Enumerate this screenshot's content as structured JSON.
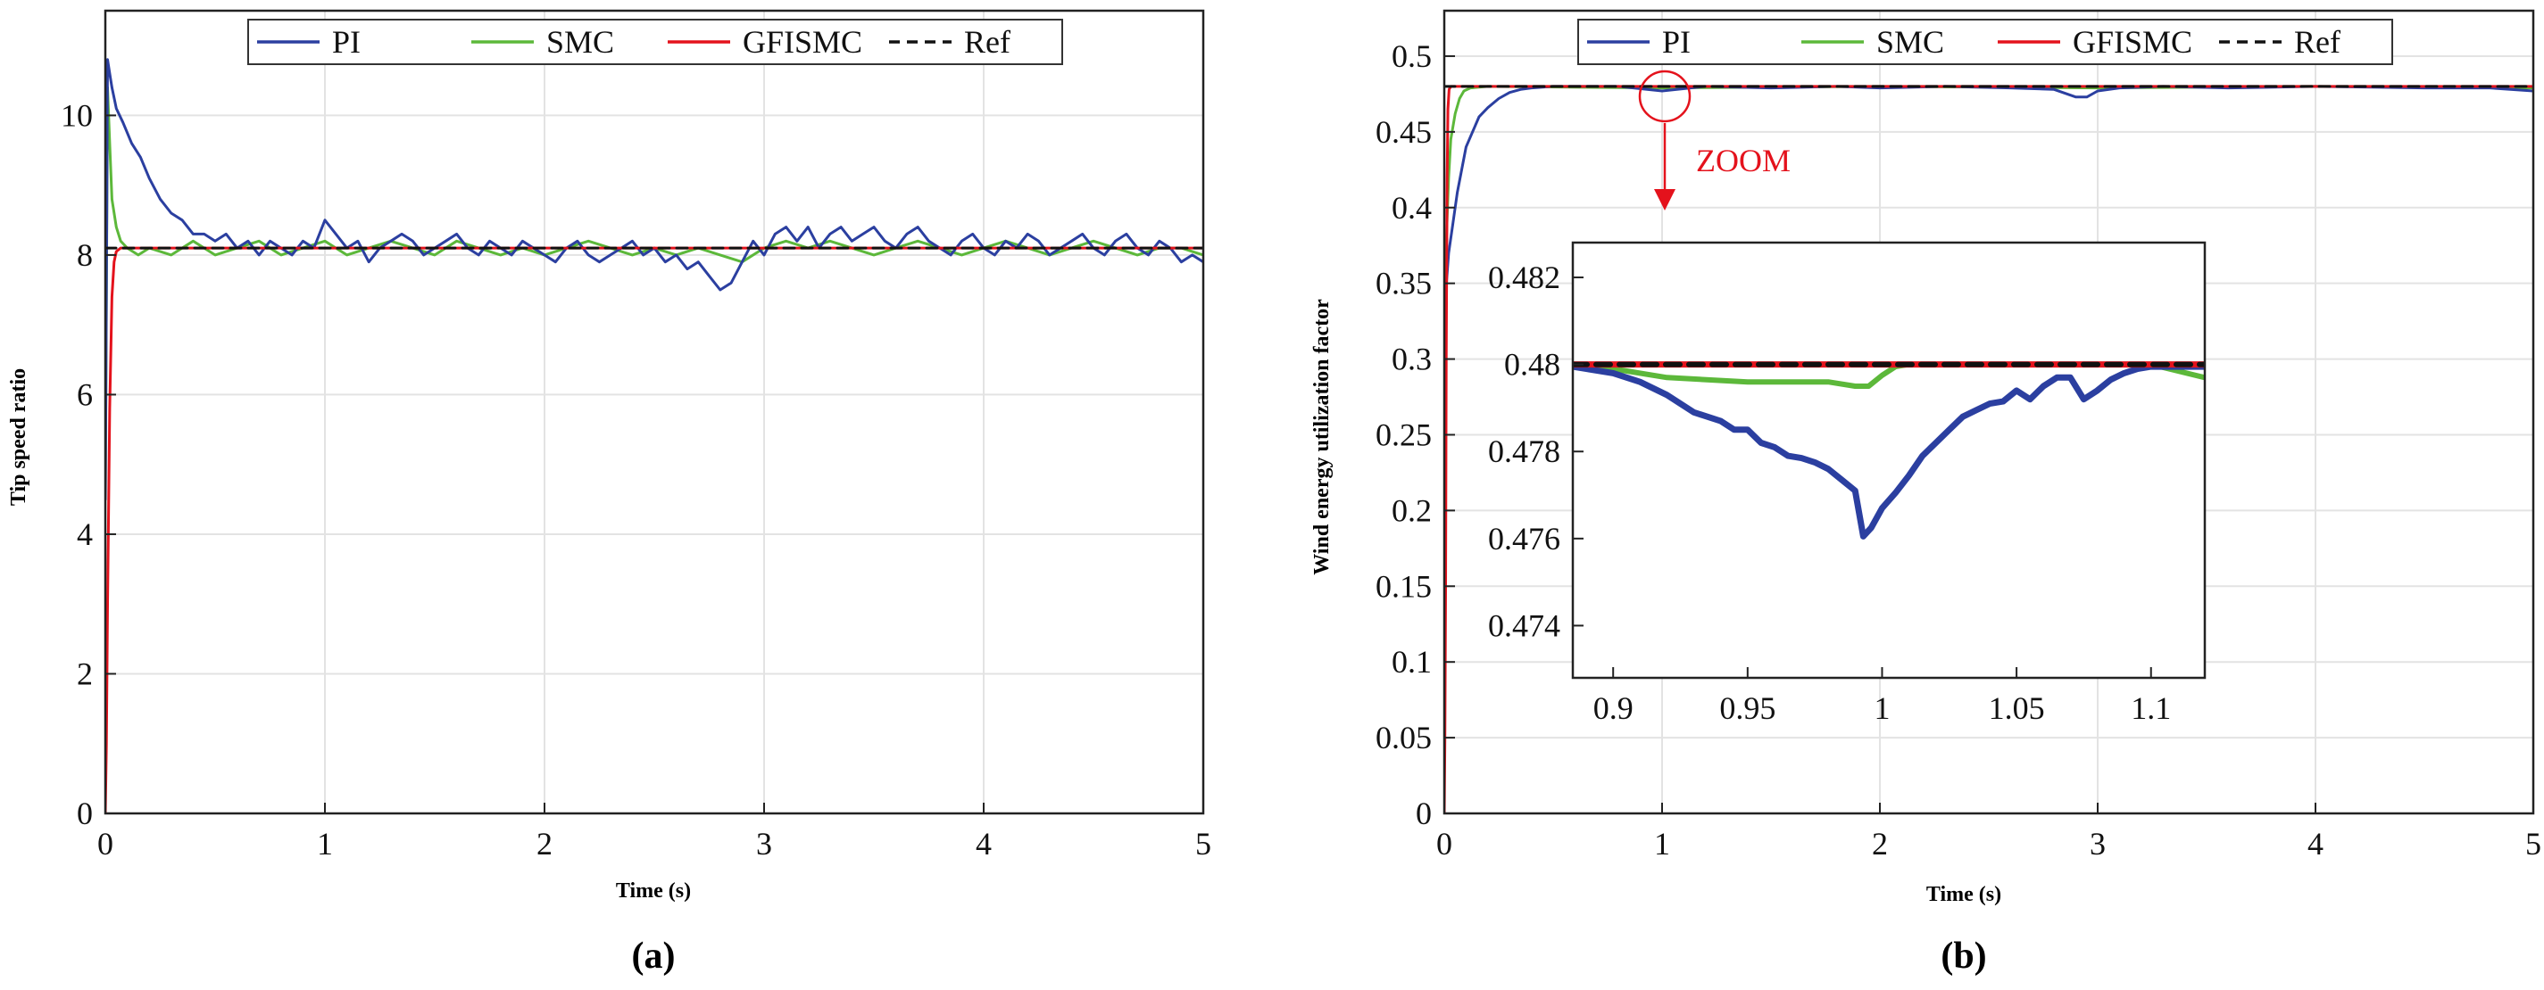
{
  "colors": {
    "PI": "#2b3fa0",
    "SMC": "#5cb83a",
    "GFISMC": "#e4121c",
    "Ref": "#111111",
    "annotation": "#e4121c"
  },
  "chart_data": [
    {
      "type": "line",
      "caption": "(a)",
      "xlabel": "Time (s)",
      "ylabel": "Tip speed ratio",
      "xlim": [
        0,
        5
      ],
      "ylim": [
        0,
        11.5
      ],
      "xticks": [
        0,
        1,
        2,
        3,
        4,
        5
      ],
      "xtick_labels": [
        "0",
        "1",
        "2",
        "3",
        "4",
        "5"
      ],
      "yticks": [
        0,
        2,
        4,
        6,
        8,
        10
      ],
      "ytick_labels": [
        "0",
        "2",
        "4",
        "6",
        "8",
        "10"
      ],
      "grid": true,
      "legend": [
        "PI",
        "SMC",
        "GFISMC",
        "Ref"
      ],
      "legend_position": "top-center",
      "series": [
        {
          "name": "PI",
          "x": [
            0,
            0.01,
            0.02,
            0.03,
            0.05,
            0.08,
            0.12,
            0.16,
            0.2,
            0.25,
            0.3,
            0.35,
            0.4,
            0.45,
            0.5,
            0.55,
            0.6,
            0.65,
            0.7,
            0.75,
            0.8,
            0.85,
            0.9,
            0.95,
            1.0,
            1.05,
            1.1,
            1.15,
            1.2,
            1.25,
            1.3,
            1.35,
            1.4,
            1.45,
            1.5,
            1.55,
            1.6,
            1.65,
            1.7,
            1.75,
            1.8,
            1.85,
            1.9,
            1.95,
            2.0,
            2.05,
            2.1,
            2.15,
            2.2,
            2.25,
            2.3,
            2.35,
            2.4,
            2.45,
            2.5,
            2.55,
            2.6,
            2.65,
            2.7,
            2.75,
            2.8,
            2.85,
            2.9,
            2.95,
            3.0,
            3.05,
            3.1,
            3.15,
            3.2,
            3.25,
            3.3,
            3.35,
            3.4,
            3.45,
            3.5,
            3.55,
            3.6,
            3.65,
            3.7,
            3.75,
            3.8,
            3.85,
            3.9,
            3.95,
            4.0,
            4.05,
            4.1,
            4.15,
            4.2,
            4.25,
            4.3,
            4.35,
            4.4,
            4.45,
            4.5,
            4.55,
            4.6,
            4.65,
            4.7,
            4.75,
            4.8,
            4.85,
            4.9,
            4.95,
            5.0
          ],
          "values": [
            4.5,
            10.8,
            10.6,
            10.4,
            10.1,
            9.9,
            9.6,
            9.4,
            9.1,
            8.8,
            8.6,
            8.5,
            8.3,
            8.3,
            8.2,
            8.3,
            8.1,
            8.2,
            8.0,
            8.2,
            8.1,
            8.0,
            8.2,
            8.1,
            8.5,
            8.3,
            8.1,
            8.2,
            7.9,
            8.1,
            8.2,
            8.3,
            8.2,
            8.0,
            8.1,
            8.2,
            8.3,
            8.1,
            8.0,
            8.2,
            8.1,
            8.0,
            8.2,
            8.1,
            8.0,
            7.9,
            8.1,
            8.2,
            8.0,
            7.9,
            8.0,
            8.1,
            8.2,
            8.0,
            8.1,
            7.9,
            8.0,
            7.8,
            7.9,
            7.7,
            7.5,
            7.6,
            7.9,
            8.2,
            8.0,
            8.3,
            8.4,
            8.2,
            8.4,
            8.1,
            8.3,
            8.4,
            8.2,
            8.3,
            8.4,
            8.2,
            8.1,
            8.3,
            8.4,
            8.2,
            8.1,
            8.0,
            8.2,
            8.3,
            8.1,
            8.0,
            8.2,
            8.1,
            8.3,
            8.2,
            8.0,
            8.1,
            8.2,
            8.3,
            8.1,
            8.0,
            8.2,
            8.3,
            8.1,
            8.0,
            8.2,
            8.1,
            7.9,
            8.0,
            7.9
          ]
        },
        {
          "name": "SMC",
          "x": [
            0,
            0.01,
            0.02,
            0.03,
            0.05,
            0.07,
            0.1,
            0.15,
            0.2,
            0.3,
            0.4,
            0.5,
            0.6,
            0.7,
            0.8,
            0.9,
            1.0,
            1.1,
            1.2,
            1.3,
            1.4,
            1.5,
            1.6,
            1.7,
            1.8,
            1.9,
            2.0,
            2.1,
            2.2,
            2.3,
            2.4,
            2.5,
            2.6,
            2.7,
            2.8,
            2.9,
            3.0,
            3.1,
            3.2,
            3.3,
            3.4,
            3.5,
            3.6,
            3.7,
            3.8,
            3.9,
            4.0,
            4.1,
            4.2,
            4.3,
            4.4,
            4.5,
            4.6,
            4.7,
            4.8,
            4.9,
            5.0
          ],
          "values": [
            4.5,
            10.4,
            9.6,
            8.8,
            8.4,
            8.2,
            8.1,
            8.0,
            8.1,
            8.0,
            8.2,
            8.0,
            8.1,
            8.2,
            8.0,
            8.1,
            8.2,
            8.0,
            8.1,
            8.2,
            8.1,
            8.0,
            8.2,
            8.1,
            8.0,
            8.1,
            8.0,
            8.1,
            8.2,
            8.1,
            8.0,
            8.1,
            8.0,
            8.1,
            8.0,
            7.9,
            8.1,
            8.2,
            8.1,
            8.2,
            8.1,
            8.0,
            8.1,
            8.2,
            8.1,
            8.0,
            8.1,
            8.2,
            8.1,
            8.0,
            8.1,
            8.2,
            8.1,
            8.0,
            8.1,
            8.1,
            8.0
          ]
        },
        {
          "name": "GFISMC",
          "x": [
            0,
            0.005,
            0.01,
            0.02,
            0.03,
            0.04,
            0.05,
            0.07,
            1.0,
            2.0,
            3.0,
            4.0,
            5.0
          ],
          "values": [
            0,
            1.0,
            3.0,
            5.8,
            7.4,
            7.9,
            8.05,
            8.1,
            8.1,
            8.1,
            8.1,
            8.1,
            8.1
          ]
        },
        {
          "name": "Ref",
          "x": [
            0,
            5
          ],
          "values": [
            8.1,
            8.1
          ],
          "dashed": true
        }
      ]
    },
    {
      "type": "line",
      "caption": "(b)",
      "xlabel": "Time (s)",
      "ylabel": "Wind energy utilization factor",
      "xlim": [
        0,
        5
      ],
      "ylim": [
        0,
        0.53
      ],
      "xticks": [
        0,
        1,
        2,
        3,
        4,
        5
      ],
      "xtick_labels": [
        "0",
        "1",
        "2",
        "3",
        "4",
        "5"
      ],
      "yticks": [
        0,
        0.05,
        0.1,
        0.15,
        0.2,
        0.25,
        0.3,
        0.35,
        0.4,
        0.45,
        0.5
      ],
      "ytick_labels": [
        "0",
        "0.05",
        "0.1",
        "0.15",
        "0.2",
        "0.25",
        "0.3",
        "0.35",
        "0.4",
        "0.45",
        "0.5"
      ],
      "grid": true,
      "legend": [
        "PI",
        "SMC",
        "GFISMC",
        "Ref"
      ],
      "legend_position": "top-center",
      "annotation": "ZOOM",
      "series": [
        {
          "name": "PI",
          "x": [
            0,
            0.01,
            0.02,
            0.04,
            0.06,
            0.08,
            0.1,
            0.13,
            0.16,
            0.2,
            0.25,
            0.3,
            0.35,
            0.4,
            0.5,
            0.6,
            0.8,
            1.0,
            1.2,
            1.5,
            1.8,
            2.0,
            2.3,
            2.6,
            2.8,
            2.9,
            2.95,
            3.0,
            3.1,
            3.3,
            3.6,
            4.0,
            4.5,
            4.8,
            5.0
          ],
          "values": [
            0.32,
            0.35,
            0.37,
            0.39,
            0.41,
            0.425,
            0.44,
            0.45,
            0.46,
            0.466,
            0.472,
            0.476,
            0.478,
            0.479,
            0.48,
            0.48,
            0.48,
            0.477,
            0.48,
            0.479,
            0.48,
            0.479,
            0.48,
            0.479,
            0.478,
            0.473,
            0.473,
            0.477,
            0.479,
            0.48,
            0.479,
            0.48,
            0.479,
            0.479,
            0.477
          ]
        },
        {
          "name": "SMC",
          "x": [
            0,
            0.01,
            0.02,
            0.03,
            0.05,
            0.07,
            0.09,
            0.12,
            0.2,
            1.0,
            2.0,
            3.0,
            4.0,
            5.0
          ],
          "values": [
            0.32,
            0.38,
            0.42,
            0.445,
            0.462,
            0.472,
            0.477,
            0.479,
            0.48,
            0.479,
            0.48,
            0.479,
            0.48,
            0.479
          ]
        },
        {
          "name": "GFISMC",
          "x": [
            0,
            0.003,
            0.006,
            0.009,
            0.013,
            0.017,
            0.022,
            0.03,
            1.0,
            2.0,
            3.0,
            4.0,
            5.0
          ],
          "values": [
            0,
            0.05,
            0.15,
            0.3,
            0.42,
            0.465,
            0.478,
            0.48,
            0.48,
            0.48,
            0.48,
            0.48,
            0.48
          ]
        },
        {
          "name": "Ref",
          "x": [
            0,
            5
          ],
          "values": [
            0.48,
            0.48
          ],
          "dashed": true
        }
      ]
    },
    {
      "type": "line",
      "caption": "zoom inset",
      "xlim": [
        0.885,
        1.12
      ],
      "ylim": [
        0.4728,
        0.4828
      ],
      "xticks": [
        0.9,
        0.95,
        1,
        1.05,
        1.1
      ],
      "xtick_labels": [
        "0.9",
        "0.95",
        "1",
        "1.05",
        "1.1"
      ],
      "yticks": [
        0.474,
        0.476,
        0.478,
        0.48,
        0.482
      ],
      "ytick_labels": [
        "0.474",
        "0.476",
        "0.478",
        "0.48",
        "0.482"
      ],
      "grid": false,
      "series": [
        {
          "name": "PI",
          "x": [
            0.885,
            0.9,
            0.91,
            0.92,
            0.925,
            0.93,
            0.94,
            0.945,
            0.95,
            0.955,
            0.96,
            0.965,
            0.97,
            0.975,
            0.98,
            0.985,
            0.99,
            0.993,
            0.996,
            1.0,
            1.005,
            1.01,
            1.015,
            1.02,
            1.025,
            1.03,
            1.035,
            1.04,
            1.045,
            1.05,
            1.055,
            1.06,
            1.065,
            1.07,
            1.075,
            1.08,
            1.085,
            1.09,
            1.095,
            1.1,
            1.12
          ],
          "values": [
            0.47995,
            0.4798,
            0.4796,
            0.4793,
            0.4791,
            0.4789,
            0.4787,
            0.4785,
            0.4785,
            0.4782,
            0.4781,
            0.4779,
            0.47785,
            0.47775,
            0.4776,
            0.47735,
            0.4771,
            0.47605,
            0.47625,
            0.4767,
            0.47705,
            0.47745,
            0.4779,
            0.4782,
            0.4785,
            0.4788,
            0.47895,
            0.4791,
            0.47915,
            0.4794,
            0.4792,
            0.4795,
            0.4797,
            0.4797,
            0.4792,
            0.4794,
            0.47965,
            0.4798,
            0.4799,
            0.47995,
            0.47995
          ]
        },
        {
          "name": "SMC",
          "x": [
            0.885,
            0.9,
            0.92,
            0.95,
            0.98,
            0.99,
            0.995,
            1.0,
            1.005,
            1.01,
            1.02,
            1.05,
            1.08,
            1.1,
            1.12
          ],
          "values": [
            0.47995,
            0.4799,
            0.4797,
            0.4796,
            0.4796,
            0.4795,
            0.4795,
            0.47975,
            0.47995,
            0.48,
            0.48,
            0.48,
            0.48,
            0.48,
            0.4797
          ]
        },
        {
          "name": "GFISMC",
          "x": [
            0.885,
            1.12
          ],
          "values": [
            0.48,
            0.48
          ]
        },
        {
          "name": "Ref",
          "x": [
            0.885,
            1.12
          ],
          "values": [
            0.48,
            0.48
          ],
          "dashed": true
        }
      ]
    }
  ]
}
